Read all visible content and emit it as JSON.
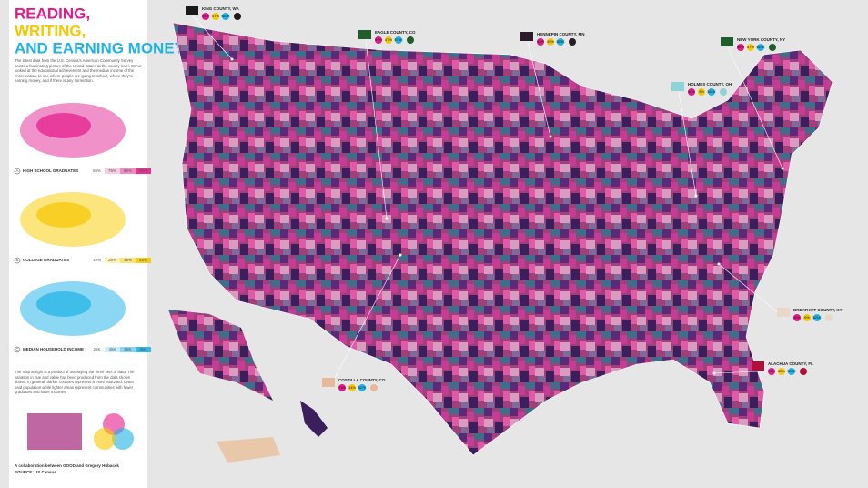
{
  "header": {
    "title_lines": [
      "READING,",
      "WRITING,",
      "AND EARNING MONEY"
    ],
    "intro": "The latest data from the U.S. Census's American Community Survey paints a fascinating picture of the United States at the county level. We've looked at the educational achievement and the median income of the entire nation, to see where people are going to school, where they're earning money, and if there is any correlation."
  },
  "legend": [
    {
      "letter": "A",
      "label": "HIGH SCHOOL GRADUATES",
      "ticks": [
        "65%",
        "75%",
        "85%",
        "95%"
      ]
    },
    {
      "letter": "B",
      "label": "COLLEGE GRADUATES",
      "ticks": [
        "15%",
        "25%",
        "35%",
        "45%"
      ]
    },
    {
      "letter": "C",
      "label": "MEDIAN HOUSEHOLD INCOME",
      "ticks": [
        "25K",
        "45K",
        "65K",
        "85K"
      ]
    }
  ],
  "note": "The map at right is a product of overlaying the three sets of data. The variation in hue and value has been produced from the data shown above. In general, darker counties represent a more educated, better paid population while lighter areas represent communities with fewer graduates and lower incomes.",
  "credits": [
    "A collaboration between GOOD and Gregory Hubacek",
    "SOURCE: US Census"
  ],
  "callouts": [
    {
      "name": "KING COUNTY, WA",
      "values": [
        "94%",
        "47%",
        "$67K"
      ]
    },
    {
      "name": "EAGLE COUNTY, CO",
      "values": [
        "92%",
        "47%",
        "$78K"
      ]
    },
    {
      "name": "HENNEPIN COUNTY, MN",
      "values": [
        "93%",
        "45%",
        "$63K"
      ]
    },
    {
      "name": "NEW YORK COUNTY, NY",
      "values": [
        "86%",
        "57%",
        "$67K"
      ]
    },
    {
      "name": "HOLMES COUNTY, OH",
      "values": [
        "64%",
        "9%",
        "$41K"
      ]
    },
    {
      "name": "BREATHITT COUNTY, KY",
      "values": [
        "60%",
        "9%",
        "$21K"
      ]
    },
    {
      "name": "ALACHUA COUNTY, FL",
      "values": [
        "90%",
        "38%",
        "$39K"
      ]
    },
    {
      "name": "COSTILLA COUNTY, CO",
      "values": [
        "73%",
        "14%",
        "$27K"
      ]
    }
  ]
}
